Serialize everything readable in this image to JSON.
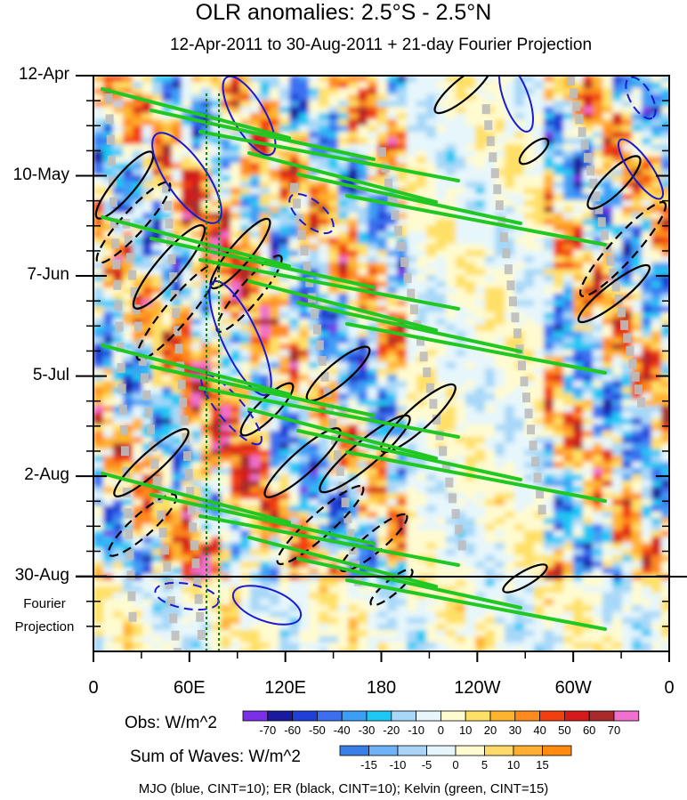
{
  "colors": {
    "obs_scale": [
      "#7b2fe8",
      "#1a1a9e",
      "#1f3fd6",
      "#3b6ff0",
      "#3d9ef5",
      "#1ec8f5",
      "#a8d8f8",
      "#e6f6fb",
      "#fffbd0",
      "#ffe066",
      "#ffb42e",
      "#ff8a1e",
      "#f23f10",
      "#d41a1a",
      "#a82a2a",
      "#f070d0"
    ],
    "wave_scale": [
      "#3a7fe8",
      "#6fb2f5",
      "#a9d4f8",
      "#e6f5fb",
      "#fffbd0",
      "#ffd96a",
      "#ffb030",
      "#ff8a10"
    ],
    "mjo": "#1a1ad0",
    "er": "#000000",
    "kelvin": "#22c822",
    "mask": "#bdbdbd"
  },
  "chart_data": {
    "type": "heatmap",
    "title": "OLR anomalies: 2.5°S - 2.5°N",
    "subtitle": "12-Apr-2011 to 30-Aug-2011 + 21-day Fourier Projection",
    "x_tick_labels": [
      "0",
      "60E",
      "120E",
      "180",
      "120W",
      "60W",
      "0"
    ],
    "x_tick_longitudes": [
      0,
      60,
      120,
      180,
      240,
      300,
      360
    ],
    "y_tick_labels": [
      "12-Apr",
      "10-May",
      "7-Jun",
      "5-Jul",
      "2-Aug",
      "30-Aug"
    ],
    "y_tick_days": [
      0,
      28,
      56,
      84,
      112,
      140
    ],
    "xlim": [
      0,
      360
    ],
    "ylim_days": [
      0,
      161
    ],
    "projection_label": [
      "Fourier",
      "Projection"
    ],
    "projection_start_day": 140,
    "obs_colorbar": {
      "label": "Obs: W/m^2",
      "levels": [
        -70,
        -60,
        -50,
        -40,
        -30,
        -20,
        -10,
        0,
        10,
        20,
        30,
        40,
        50,
        60,
        70
      ]
    },
    "waves_colorbar": {
      "label": "Sum of Waves: W/m^2",
      "levels": [
        -15,
        -10,
        -5,
        0,
        5,
        10,
        15
      ]
    },
    "contour_legend": "MJO (blue, CINT=10); ER (black, CINT=10); Kelvin (green, CINT=15)"
  }
}
